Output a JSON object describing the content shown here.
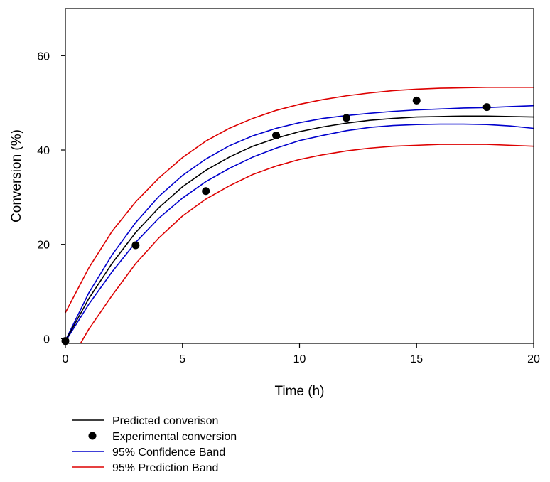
{
  "chart_data": {
    "type": "scatter",
    "title": "",
    "xlabel": "Time (h)",
    "ylabel": "Conversion (%)",
    "xlim": [
      0,
      20
    ],
    "ylim": [
      -1,
      70
    ],
    "x_ticks": [
      0,
      5,
      10,
      15,
      20
    ],
    "x_tick_labels": [
      "0",
      "5",
      "10",
      "15",
      "20"
    ],
    "y_ticks": [
      0,
      20,
      40,
      60
    ],
    "y_tick_labels": [
      "0",
      "20",
      "40",
      "60"
    ],
    "grid": false,
    "legend_position": "bottom-left",
    "series": [
      {
        "name": "Predicted converison",
        "kind": "line",
        "color": "#000000",
        "x": [
          0,
          1,
          2,
          3,
          4,
          5,
          6,
          7,
          8,
          9,
          10,
          11,
          12,
          13,
          14,
          15,
          16,
          17,
          18,
          19,
          20
        ],
        "y": [
          -0.5,
          8.5,
          16.0,
          22.5,
          27.8,
          32.2,
          35.7,
          38.5,
          40.8,
          42.5,
          43.9,
          44.9,
          45.7,
          46.3,
          46.7,
          47.0,
          47.1,
          47.2,
          47.2,
          47.1,
          47.0
        ]
      },
      {
        "name": "Experimental conversion",
        "kind": "scatter",
        "color": "#000000",
        "x": [
          0,
          3,
          6,
          9,
          12,
          15,
          18
        ],
        "y": [
          -0.5,
          19.8,
          31.3,
          43.1,
          46.8,
          50.5,
          49.1
        ]
      },
      {
        "name": "95% Confidence Band",
        "kind": "band",
        "color": "#0000cc",
        "x": [
          0,
          1,
          2,
          3,
          4,
          5,
          6,
          7,
          8,
          9,
          10,
          11,
          12,
          13,
          14,
          15,
          16,
          17,
          18,
          19,
          20
        ],
        "upper": [
          -0.4,
          9.7,
          17.8,
          24.6,
          30.2,
          34.6,
          38.1,
          40.9,
          43.0,
          44.6,
          45.8,
          46.7,
          47.3,
          47.8,
          48.2,
          48.5,
          48.7,
          48.9,
          49.0,
          49.2,
          49.4
        ],
        "lower": [
          -0.6,
          7.3,
          14.2,
          20.4,
          25.6,
          29.8,
          33.3,
          36.1,
          38.5,
          40.4,
          42.0,
          43.1,
          44.1,
          44.8,
          45.2,
          45.4,
          45.5,
          45.5,
          45.4,
          45.1,
          44.6
        ]
      },
      {
        "name": "95% Prediction Band",
        "kind": "band",
        "color": "#dd0000",
        "x": [
          0,
          1,
          2,
          3,
          4,
          5,
          6,
          7,
          8,
          9,
          10,
          11,
          12,
          13,
          14,
          15,
          16,
          17,
          18,
          19,
          20
        ],
        "upper": [
          5.5,
          15.0,
          22.8,
          29.0,
          34.1,
          38.4,
          41.9,
          44.6,
          46.7,
          48.4,
          49.7,
          50.7,
          51.5,
          52.1,
          52.6,
          52.9,
          53.1,
          53.2,
          53.3,
          53.3,
          53.3
        ],
        "lower": [
          -6.5,
          2.0,
          9.2,
          15.9,
          21.4,
          26.0,
          29.6,
          32.4,
          34.8,
          36.6,
          38.0,
          39.0,
          39.8,
          40.4,
          40.8,
          41.0,
          41.2,
          41.2,
          41.2,
          41.0,
          40.8
        ]
      }
    ]
  }
}
